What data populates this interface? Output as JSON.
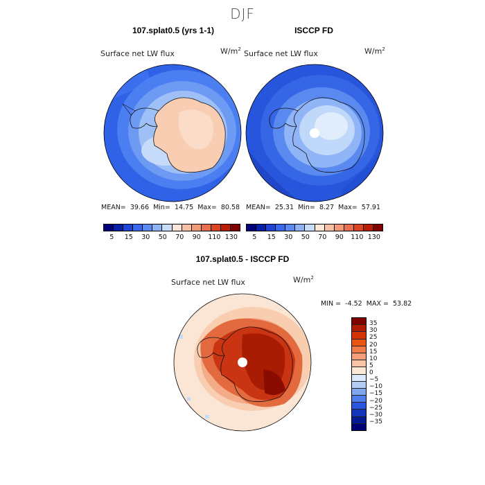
{
  "figure_title": "DJF",
  "panels": [
    {
      "title": "107.splat0.5 (yrs 1-1)",
      "variable": "Surface net LW flux",
      "units_base": "W/m",
      "units_exp": "2",
      "mean_label": "MEAN=",
      "mean": "39.66",
      "min_label": "Min=",
      "min": "14.75",
      "max_label": "Max=",
      "max": "80.58"
    },
    {
      "title": "ISCCP FD",
      "variable": "Surface net LW flux",
      "units_base": "W/m",
      "units_exp": "2",
      "mean_label": "MEAN=",
      "mean": "25.31",
      "min_label": "Min=",
      "min": "8.27",
      "max_label": "Max=",
      "max": "57.91"
    },
    {
      "title": "107.splat0.5 - ISCCP FD",
      "variable": "Surface net LW flux",
      "units_base": "W/m",
      "units_exp": "2",
      "min_label": "MIN =",
      "min": "-4.52",
      "max_label": "MAX =",
      "max": "53.82"
    }
  ],
  "colorbar_top": {
    "colors": [
      "#00007a",
      "#0a1fa8",
      "#1f45d6",
      "#3a68ee",
      "#5b8af2",
      "#8db3f6",
      "#c7dcfa",
      "#fbe6d8",
      "#f7c0a4",
      "#f29a76",
      "#ea6f4e",
      "#da4420",
      "#b81e06",
      "#800000"
    ],
    "tick_labels": [
      "5",
      "15",
      "30",
      "50",
      "70",
      "90",
      "110",
      "130"
    ]
  },
  "colorbar_diff": {
    "colors": [
      "#800000",
      "#b01b02",
      "#d43506",
      "#e85412",
      "#f07a4a",
      "#f59e7c",
      "#f8c4a8",
      "#fbe8d8",
      "#dce9fb",
      "#b4cdf5",
      "#7ea7ee",
      "#4f7eea",
      "#2c55de",
      "#1535b8",
      "#061b93",
      "#000074"
    ],
    "labels": [
      "35",
      "30",
      "25",
      "20",
      "15",
      "10",
      "5",
      "0",
      "−5",
      "−10",
      "−15",
      "−20",
      "−25",
      "−30",
      "−35"
    ]
  }
}
